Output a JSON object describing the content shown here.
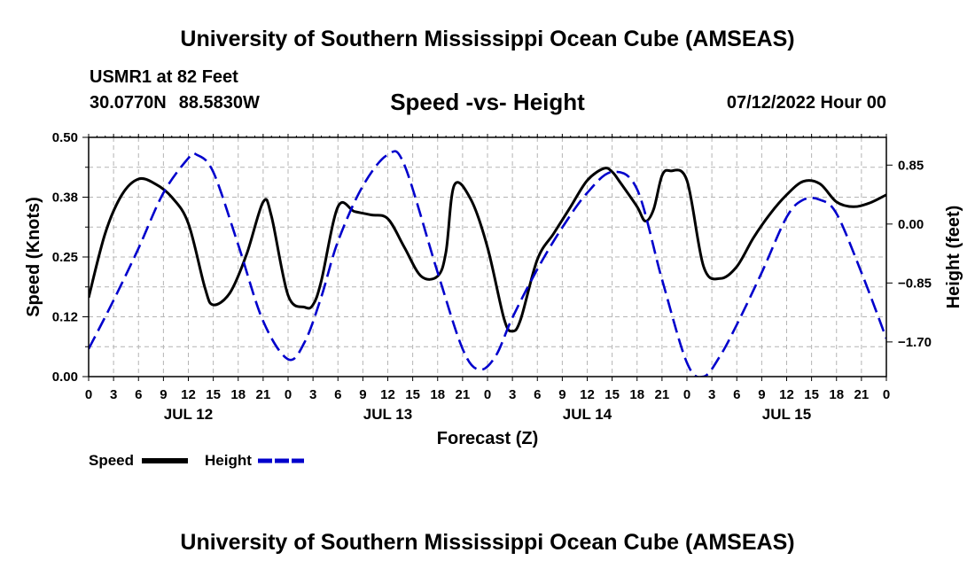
{
  "header": {
    "title": "University of Southern Mississippi Ocean Cube (AMSEAS)",
    "station": "USMR1 at 82 Feet",
    "lat": "30.0770N",
    "lon": "88.5830W",
    "subtitle": "Speed -vs- Height",
    "datetime": "07/12/2022 Hour 00"
  },
  "footer": {
    "title": "University of Southern Mississippi Ocean Cube (AMSEAS)"
  },
  "colors": {
    "speed": "#000000",
    "height": "#0000cc",
    "grid": "#b4b4b4"
  },
  "chart_data": {
    "type": "line",
    "title": "Speed -vs- Height",
    "xlabel": "Forecast (Z)",
    "ylabel_left": "Speed (Knots)",
    "ylabel_right": "Height (feet)",
    "x_range_hours": [
      0,
      96
    ],
    "x_tick_step_hours": 3,
    "x_tick_labels": [
      "0",
      "3",
      "6",
      "9",
      "12",
      "15",
      "18",
      "21",
      "0",
      "3",
      "6",
      "9",
      "12",
      "15",
      "18",
      "21",
      "0",
      "3",
      "6",
      "9",
      "12",
      "15",
      "18",
      "21",
      "0",
      "3",
      "6",
      "9",
      "12",
      "15",
      "18",
      "21",
      "0"
    ],
    "day_labels": [
      {
        "label": "JUL 12",
        "hour": 12
      },
      {
        "label": "JUL 13",
        "hour": 36
      },
      {
        "label": "JUL 14",
        "hour": 60
      },
      {
        "label": "JUL 15",
        "hour": 84
      }
    ],
    "y_left": {
      "range": [
        0,
        0.5
      ],
      "ticks": [
        "0.00",
        "0.12",
        "0.25",
        "0.38",
        "0.50"
      ]
    },
    "y_right": {
      "range": [
        -2.2,
        1.25
      ],
      "ticks": [
        {
          "label": "0.85",
          "value": 0.85
        },
        {
          "label": "0.00",
          "value": 0.0
        },
        {
          "label": "−0.85",
          "value": -0.85
        },
        {
          "label": "−1.70",
          "value": -1.7
        }
      ]
    },
    "grid": true,
    "legend": {
      "placement": "bottom-left",
      "speed_label": "Speed",
      "height_label": "Height"
    },
    "series": [
      {
        "name": "Speed",
        "axis": "left",
        "style": "solid",
        "x": [
          0,
          2,
          4,
          6,
          8,
          10,
          12,
          14,
          15,
          17,
          19,
          21,
          22,
          24,
          26,
          27,
          28,
          30,
          32,
          34,
          36,
          38,
          40,
          42,
          43,
          44,
          46,
          48,
          50,
          51,
          52,
          54,
          56,
          58,
          60,
          62,
          63,
          64,
          66,
          67,
          68,
          69,
          70,
          72,
          74,
          76,
          78,
          80,
          82,
          84,
          86,
          88,
          90,
          92,
          94,
          96
        ],
        "values": [
          0.165,
          0.3,
          0.38,
          0.413,
          0.403,
          0.375,
          0.32,
          0.185,
          0.15,
          0.175,
          0.255,
          0.365,
          0.335,
          0.17,
          0.145,
          0.15,
          0.2,
          0.355,
          0.345,
          0.338,
          0.33,
          0.27,
          0.21,
          0.21,
          0.26,
          0.4,
          0.37,
          0.27,
          0.12,
          0.095,
          0.12,
          0.245,
          0.3,
          0.355,
          0.41,
          0.435,
          0.428,
          0.405,
          0.355,
          0.325,
          0.35,
          0.42,
          0.43,
          0.41,
          0.23,
          0.205,
          0.23,
          0.29,
          0.34,
          0.38,
          0.408,
          0.403,
          0.365,
          0.355,
          0.363,
          0.38
        ]
      },
      {
        "name": "Height",
        "axis": "right",
        "style": "dashed",
        "x": [
          0,
          3,
          6,
          9,
          12,
          13,
          15,
          18,
          21,
          24,
          26,
          28,
          30,
          33,
          36,
          38,
          42,
          45,
          47,
          49,
          51,
          54,
          57,
          60,
          63,
          66,
          69,
          72,
          74,
          76,
          78,
          81,
          84,
          86,
          88,
          90,
          93,
          96
        ],
        "values": [
          -1.8,
          -1.1,
          -0.35,
          0.45,
          0.95,
          1.0,
          0.75,
          -0.3,
          -1.4,
          -1.95,
          -1.7,
          -1.05,
          -0.25,
          0.55,
          1.0,
          0.85,
          -0.7,
          -1.8,
          -2.1,
          -1.9,
          -1.35,
          -0.65,
          -0.05,
          0.45,
          0.75,
          0.5,
          -0.8,
          -2.0,
          -2.2,
          -1.9,
          -1.45,
          -0.7,
          0.1,
          0.35,
          0.35,
          0.15,
          -0.7,
          -1.65
        ]
      }
    ]
  }
}
